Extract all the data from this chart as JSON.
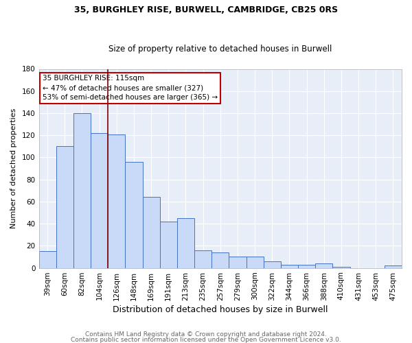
{
  "title": "35, BURGHLEY RISE, BURWELL, CAMBRIDGE, CB25 0RS",
  "subtitle": "Size of property relative to detached houses in Burwell",
  "xlabel": "Distribution of detached houses by size in Burwell",
  "ylabel": "Number of detached properties",
  "categories": [
    "39sqm",
    "60sqm",
    "82sqm",
    "104sqm",
    "126sqm",
    "148sqm",
    "169sqm",
    "191sqm",
    "213sqm",
    "235sqm",
    "257sqm",
    "279sqm",
    "300sqm",
    "322sqm",
    "344sqm",
    "366sqm",
    "388sqm",
    "410sqm",
    "431sqm",
    "453sqm",
    "475sqm"
  ],
  "values": [
    15,
    110,
    140,
    122,
    121,
    96,
    64,
    42,
    45,
    16,
    14,
    10,
    10,
    6,
    3,
    3,
    4,
    1,
    0,
    0,
    2
  ],
  "bar_color": "#c9daf8",
  "bar_edge_color": "#4472c4",
  "vline_x": 3.5,
  "vline_color": "#7b0000",
  "annotation_text": "35 BURGHLEY RISE: 115sqm\n← 47% of detached houses are smaller (327)\n53% of semi-detached houses are larger (365) →",
  "annotation_box_facecolor": "#ffffff",
  "annotation_box_edgecolor": "#c00000",
  "ylim": [
    0,
    180
  ],
  "yticks": [
    0,
    20,
    40,
    60,
    80,
    100,
    120,
    140,
    160,
    180
  ],
  "footer_line1": "Contains HM Land Registry data © Crown copyright and database right 2024.",
  "footer_line2": "Contains public sector information licensed under the Open Government Licence v3.0.",
  "plot_bg_color": "#e8eef8",
  "fig_bg_color": "#ffffff",
  "grid_color": "#ffffff",
  "title_fontsize": 9,
  "subtitle_fontsize": 8.5,
  "xlabel_fontsize": 9,
  "ylabel_fontsize": 8,
  "tick_fontsize": 7.5,
  "annotation_fontsize": 7.5,
  "footer_fontsize": 6.5
}
